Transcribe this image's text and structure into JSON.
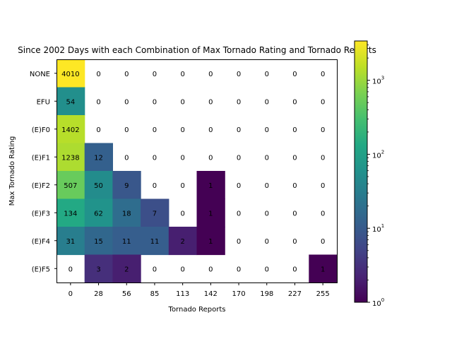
{
  "chart_data": {
    "type": "heatmap",
    "title": "Since 2002 Days with each Combination of Max Tornado Rating and Tornado Reports",
    "xlabel": "Tornado Reports",
    "ylabel": "Max Tornado Rating",
    "x_categories": [
      "0",
      "28",
      "56",
      "85",
      "113",
      "142",
      "170",
      "198",
      "227",
      "255"
    ],
    "y_categories": [
      "NONE",
      "EFU",
      "(E)F0",
      "(E)F1",
      "(E)F2",
      "(E)F3",
      "(E)F4",
      "(E)F5"
    ],
    "values": [
      [
        4010,
        0,
        0,
        0,
        0,
        0,
        0,
        0,
        0,
        0
      ],
      [
        54,
        0,
        0,
        0,
        0,
        0,
        0,
        0,
        0,
        0
      ],
      [
        1402,
        0,
        0,
        0,
        0,
        0,
        0,
        0,
        0,
        0
      ],
      [
        1238,
        12,
        0,
        0,
        0,
        0,
        0,
        0,
        0,
        0
      ],
      [
        507,
        50,
        9,
        0,
        0,
        1,
        0,
        0,
        0,
        0
      ],
      [
        134,
        62,
        18,
        7,
        0,
        1,
        0,
        0,
        0,
        0
      ],
      [
        31,
        15,
        11,
        11,
        2,
        1,
        0,
        0,
        0,
        0
      ],
      [
        0,
        3,
        2,
        0,
        0,
        0,
        0,
        0,
        0,
        1
      ]
    ],
    "colormap": "viridis",
    "color_scale": "log",
    "zero_cells": "blank",
    "colorbar": {
      "range": [
        1,
        3400
      ],
      "ticks": [
        {
          "value": 1,
          "base": "10",
          "exp": "0"
        },
        {
          "value": 10,
          "base": "10",
          "exp": "1"
        },
        {
          "value": 100,
          "base": "10",
          "exp": "2"
        },
        {
          "value": 1000,
          "base": "10",
          "exp": "3"
        }
      ]
    }
  }
}
